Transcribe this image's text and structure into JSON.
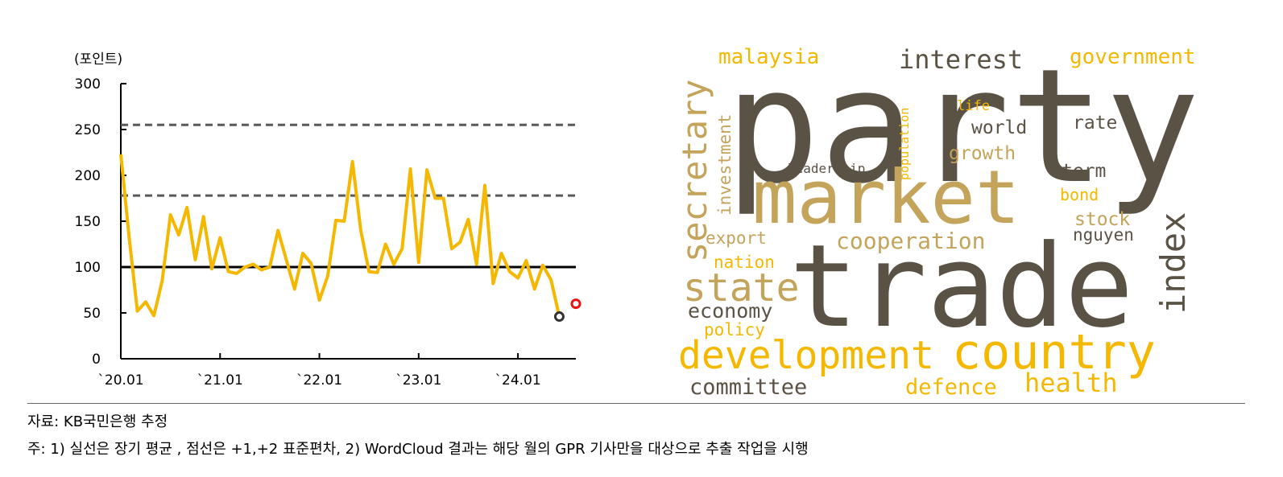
{
  "chart_data": {
    "type": "line",
    "ylabel": "(포인트)",
    "ylim": [
      0,
      300
    ],
    "yticks": [
      "300",
      "250",
      "200",
      "150",
      "100",
      "50",
      "0"
    ],
    "xticks": [
      "`20.01",
      "`21.01",
      "`22.01",
      "`23.01",
      "`24.01"
    ],
    "x_range_months": [
      0,
      55
    ],
    "series": [
      {
        "color": "#f5b800",
        "values": [
          223,
          133,
          52,
          62,
          47,
          85,
          157,
          135,
          165,
          108,
          155,
          98,
          132,
          95,
          93,
          100,
          103,
          97,
          100,
          140,
          108,
          76,
          115,
          104,
          64,
          90,
          151,
          150,
          215,
          140,
          95,
          94,
          125,
          103,
          120,
          207,
          105,
          206,
          175,
          175,
          120,
          127,
          152,
          103,
          189,
          82,
          115,
          95,
          88,
          107,
          76,
          102,
          86,
          46
        ]
      }
    ],
    "reference_lines": [
      {
        "value": 100,
        "style": "solid",
        "color": "#000000"
      },
      {
        "value": 178,
        "style": "dashed",
        "color": "#595959"
      },
      {
        "value": 255,
        "style": "dashed",
        "color": "#595959"
      }
    ],
    "markers": [
      {
        "x": 53,
        "value": 46,
        "color": "#333333"
      },
      {
        "x": 55,
        "value": 60,
        "color": "#ee1111"
      }
    ]
  },
  "wordcloud": {
    "words": [
      {
        "text": "party",
        "color": "#5a5245"
      },
      {
        "text": "trade",
        "color": "#5a5245"
      },
      {
        "text": "market",
        "color": "#c4a35a"
      },
      {
        "text": "country",
        "color": "#f5b800"
      },
      {
        "text": "development",
        "color": "#f5b800"
      },
      {
        "text": "secretary",
        "color": "#c4a35a"
      },
      {
        "text": "state",
        "color": "#c4a35a"
      },
      {
        "text": "index",
        "color": "#5a5245"
      },
      {
        "text": "interest",
        "color": "#5a5245"
      },
      {
        "text": "government",
        "color": "#f5b800"
      },
      {
        "text": "malaysia",
        "color": "#f5b800"
      },
      {
        "text": "investment",
        "color": "#c4a35a"
      },
      {
        "text": "population",
        "color": "#f5b800"
      },
      {
        "text": "life",
        "color": "#f5b800"
      },
      {
        "text": "world",
        "color": "#5a5245"
      },
      {
        "text": "rate",
        "color": "#5a5245"
      },
      {
        "text": "growth",
        "color": "#c4a35a"
      },
      {
        "text": "leadership",
        "color": "#5a5245"
      },
      {
        "text": "term",
        "color": "#5a5245"
      },
      {
        "text": "bond",
        "color": "#f5b800"
      },
      {
        "text": "stock",
        "color": "#c4a35a"
      },
      {
        "text": "nguyen",
        "color": "#5a5245"
      },
      {
        "text": "export",
        "color": "#c4a35a"
      },
      {
        "text": "cooperation",
        "color": "#c4a35a"
      },
      {
        "text": "nation",
        "color": "#f5b800"
      },
      {
        "text": "economy",
        "color": "#5a5245"
      },
      {
        "text": "policy",
        "color": "#f5b800"
      },
      {
        "text": "committee",
        "color": "#5a5245"
      },
      {
        "text": "defence",
        "color": "#f5b800"
      },
      {
        "text": "health",
        "color": "#f5b800"
      }
    ]
  },
  "notes": {
    "source": "자료: KB국민은행 추정",
    "footnote": "주: 1) 실선은 장기 평균 , 점선은 +1,+2 표준편차, 2) WordCloud 결과는 해당 월의 GPR 기사만을 대상으로 추출 작업을 시행"
  }
}
